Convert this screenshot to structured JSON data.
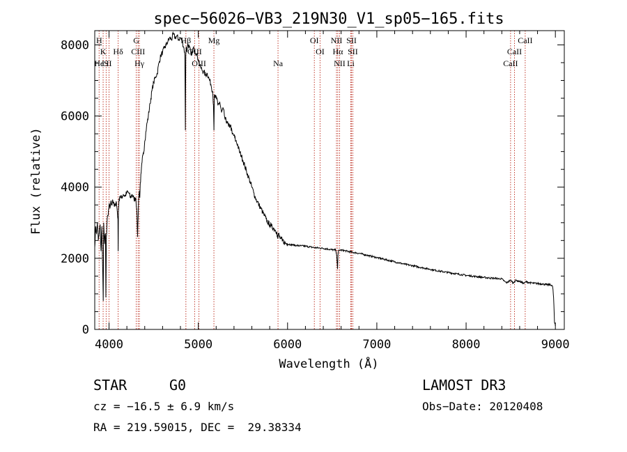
{
  "chart_data": {
    "type": "line",
    "title": "spec−56026−VB3_219N30_V1_sp05−165.fits",
    "xlabel": "Wavelength (Å)",
    "ylabel": "Flux (relative)",
    "xlim": [
      3840,
      9100
    ],
    "ylim": [
      0,
      8400
    ],
    "xticks": [
      4000,
      5000,
      6000,
      7000,
      8000,
      9000
    ],
    "yticks": [
      0,
      2000,
      4000,
      6000,
      8000
    ],
    "xtick_labels": [
      "4000",
      "5000",
      "6000",
      "7000",
      "8000",
      "9000"
    ],
    "ytick_labels": [
      "0",
      "2000",
      "4000",
      "6000",
      "8000"
    ],
    "series": [
      {
        "name": "spectrum",
        "x": [
          3840,
          3850,
          3860,
          3870,
          3880,
          3890,
          3900,
          3910,
          3920,
          3930,
          3935,
          3940,
          3950,
          3960,
          3965,
          3970,
          3980,
          3990,
          4000,
          4010,
          4020,
          4030,
          4040,
          4050,
          4060,
          4070,
          4080,
          4090,
          4100,
          4102,
          4105,
          4110,
          4120,
          4140,
          4160,
          4180,
          4200,
          4220,
          4240,
          4260,
          4280,
          4300,
          4310,
          4320,
          4330,
          4340,
          4345,
          4350,
          4360,
          4370,
          4380,
          4390,
          4400,
          4420,
          4440,
          4460,
          4480,
          4500,
          4520,
          4540,
          4560,
          4580,
          4600,
          4620,
          4640,
          4660,
          4680,
          4700,
          4720,
          4740,
          4760,
          4780,
          4800,
          4820,
          4840,
          4850,
          4855,
          4860,
          4865,
          4870,
          4880,
          4900,
          4920,
          4940,
          4960,
          4980,
          5000,
          5020,
          5040,
          5060,
          5080,
          5100,
          5120,
          5140,
          5160,
          5170,
          5175,
          5180,
          5190,
          5200,
          5220,
          5240,
          5260,
          5280,
          5300,
          5320,
          5340,
          5360,
          5380,
          5400,
          5420,
          5440,
          5460,
          5480,
          5500,
          5520,
          5540,
          5560,
          5580,
          5600,
          5620,
          5640,
          5660,
          5680,
          5700,
          5720,
          5740,
          5760,
          5780,
          5800,
          5820,
          5840,
          5860,
          5880,
          5890,
          5900,
          5910,
          5920,
          5940,
          5960,
          5980,
          6000,
          6050,
          6100,
          6150,
          6200,
          6250,
          6300,
          6350,
          6400,
          6450,
          6500,
          6540,
          6550,
          6560,
          6565,
          6570,
          6580,
          6600,
          6650,
          6700,
          6750,
          6800,
          6900,
          7000,
          7100,
          7200,
          7300,
          7400,
          7500,
          7600,
          7700,
          7800,
          7900,
          8000,
          8100,
          8200,
          8300,
          8400,
          8450,
          8498,
          8510,
          8530,
          8542,
          8560,
          8600,
          8650,
          8662,
          8680,
          8700,
          8750,
          8800,
          8850,
          8900,
          8950,
          8960,
          8970,
          8980,
          8990,
          9000
        ],
        "y": [
          2300,
          2900,
          2700,
          3000,
          2500,
          2700,
          2950,
          2200,
          2900,
          1600,
          800,
          3000,
          2400,
          2700,
          900,
          2600,
          3100,
          3200,
          3500,
          3400,
          3600,
          3500,
          3650,
          3550,
          3450,
          3500,
          3600,
          3400,
          3100,
          2200,
          3300,
          3550,
          3750,
          3700,
          3800,
          3750,
          3850,
          3850,
          3700,
          3800,
          3650,
          3700,
          3400,
          2600,
          3600,
          3900,
          3700,
          4100,
          4400,
          4700,
          4900,
          5000,
          5300,
          5700,
          6000,
          6350,
          6700,
          6950,
          7100,
          7200,
          7500,
          7700,
          7800,
          7900,
          8000,
          8100,
          8200,
          8150,
          8300,
          8200,
          8250,
          8150,
          8200,
          8100,
          7900,
          7700,
          5600,
          7700,
          7950,
          7800,
          8000,
          7950,
          7700,
          7900,
          7850,
          7750,
          7600,
          7400,
          7300,
          7250,
          7150,
          7200,
          7050,
          6900,
          6700,
          6300,
          5600,
          6600,
          6500,
          6550,
          6300,
          6400,
          6100,
          6200,
          5900,
          5850,
          5700,
          5750,
          5500,
          5450,
          5300,
          5200,
          5000,
          4900,
          4750,
          4600,
          4450,
          4300,
          4150,
          4000,
          3850,
          3700,
          3600,
          3500,
          3400,
          3300,
          3200,
          3100,
          3000,
          2950,
          2900,
          2850,
          2800,
          2750,
          2550,
          2700,
          2600,
          2550,
          2500,
          2450,
          2420,
          2400,
          2380,
          2360,
          2350,
          2340,
          2320,
          2300,
          2290,
          2280,
          2260,
          2240,
          2230,
          2100,
          1700,
          2100,
          2200,
          2230,
          2230,
          2210,
          2180,
          2160,
          2140,
          2080,
          2020,
          1960,
          1900,
          1840,
          1790,
          1740,
          1690,
          1640,
          1600,
          1560,
          1520,
          1490,
          1460,
          1440,
          1420,
          1310,
          1380,
          1360,
          1300,
          1350,
          1380,
          1350,
          1290,
          1330,
          1340,
          1320,
          1300,
          1290,
          1280,
          1260,
          1250,
          1240,
          1200,
          900,
          200,
          100
        ]
      }
    ],
    "lines": [
      {
        "label": "H",
        "wl": 3889,
        "row": 0
      },
      {
        "label": "K",
        "wl": 3934,
        "row": 1
      },
      {
        "label": "He",
        "wl": 3889,
        "row": 2
      },
      {
        "label": "I",
        "wl": 3934,
        "row": 2
      },
      {
        "label": "S",
        "wl": 3968,
        "row": 2
      },
      {
        "label": "II",
        "wl": 4000,
        "row": 2
      },
      {
        "label": "Hδ",
        "wl": 4102,
        "row": 1
      },
      {
        "label": "G",
        "wl": 4305,
        "row": 0
      },
      {
        "label": "CIII",
        "wl": 4326,
        "row": 1
      },
      {
        "label": "Hγ",
        "wl": 4340,
        "row": 2
      },
      {
        "label": "Hβ",
        "wl": 4861,
        "row": 0
      },
      {
        "label": "OIII",
        "wl": 4959,
        "row": 1
      },
      {
        "label": "OIII",
        "wl": 5007,
        "row": 2
      },
      {
        "label": "Mg",
        "wl": 5175,
        "row": 0
      },
      {
        "label": "Na",
        "wl": 5893,
        "row": 2
      },
      {
        "label": "OI",
        "wl": 6300,
        "row": 0
      },
      {
        "label": "OI",
        "wl": 6364,
        "row": 1
      },
      {
        "label": "NII",
        "wl": 6548,
        "row": 0
      },
      {
        "label": "Hα",
        "wl": 6563,
        "row": 1
      },
      {
        "label": "NII",
        "wl": 6583,
        "row": 2
      },
      {
        "label": "SII",
        "wl": 6716,
        "row": 0
      },
      {
        "label": "SII",
        "wl": 6731,
        "row": 1
      },
      {
        "label": "Li",
        "wl": 6708,
        "row": 2
      },
      {
        "label": "CaII",
        "wl": 8498,
        "row": 2
      },
      {
        "label": "CaII",
        "wl": 8542,
        "row": 1
      },
      {
        "label": "CaII",
        "wl": 8662,
        "row": 0
      }
    ]
  },
  "info": {
    "object_class": "STAR",
    "subclass": "G0",
    "survey": "LAMOST DR3",
    "cz": "cz = −16.5 ± 6.9 km/s",
    "obs_date": "Obs−Date: 20120408",
    "coords": "RA = 219.59015, DEC =  29.38334"
  }
}
